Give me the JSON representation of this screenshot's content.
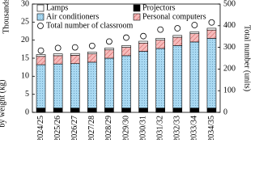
{
  "chart_data": {
    "type": "bar",
    "stacked": true,
    "y_label_unit": "Thousands",
    "y_label": "by weight (kg)",
    "y2_label": "Total number (units)",
    "categories": [
      "2024/25",
      "2025/26",
      "2026/27",
      "2027/28",
      "2028/29",
      "2029/30",
      "2030/31",
      "2031/32",
      "2032/33",
      "2033/34",
      "2034/35"
    ],
    "series": [
      {
        "name": "Lamps",
        "color": "#ffffff",
        "pattern": "none",
        "values": [
          0.5,
          0.5,
          0.5,
          0.5,
          0.5,
          0.5,
          0.5,
          0.5,
          0.5,
          0.5,
          0.5
        ]
      },
      {
        "name": "Projectors",
        "color": "#000000",
        "pattern": "none",
        "values": [
          1.2,
          1.2,
          1.2,
          1.2,
          1.2,
          1.2,
          1.2,
          1.2,
          1.2,
          1.2,
          1.2
        ]
      },
      {
        "name": "Air conditioners",
        "color": "#a9d9f2",
        "pattern": "dots",
        "values": [
          12,
          12.2,
          12.3,
          12.7,
          13.8,
          14.5,
          15.7,
          16.5,
          17.3,
          18.3,
          19.3
        ]
      },
      {
        "name": "Personal computers",
        "color": "#f6baba",
        "pattern": "hatch",
        "values": [
          2.3,
          2.3,
          2.3,
          2.3,
          2.3,
          2.3,
          2.3,
          2.3,
          2.3,
          2.3,
          2.3
        ]
      },
      {
        "name": "Total number of classroom",
        "type": "scatter",
        "axis": "y2",
        "color": "#ffffff",
        "values": [
          285,
          297,
          300,
          307,
          327,
          345,
          352,
          382,
          388,
          403,
          415
        ]
      }
    ],
    "ylim": [
      0,
      30
    ],
    "yticks": [
      0,
      5,
      10,
      15,
      20,
      25,
      30
    ],
    "y2lim": [
      0,
      500
    ],
    "y2ticks": [
      0,
      100,
      200,
      300,
      400,
      500
    ]
  }
}
